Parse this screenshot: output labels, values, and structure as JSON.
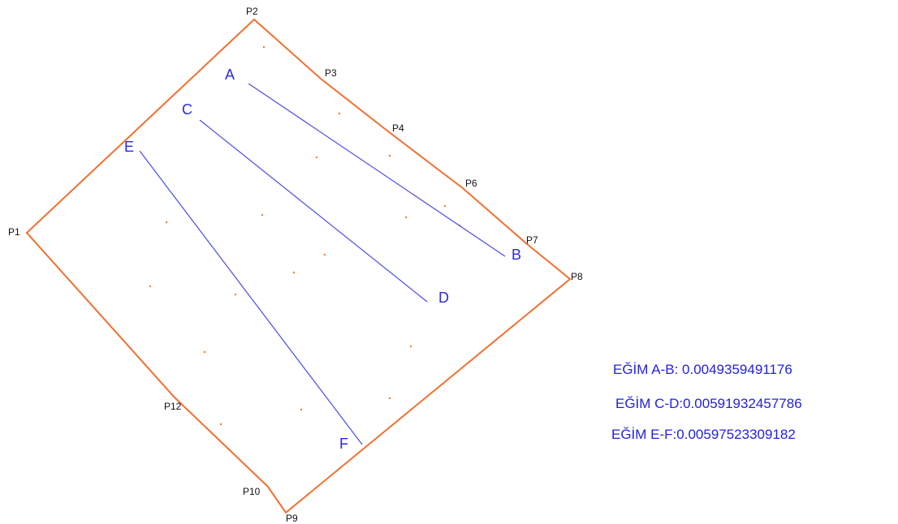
{
  "points": [
    "P1",
    "P2",
    "P3",
    "P4",
    "P6",
    "P7",
    "P8",
    "P9",
    "P10",
    "P12"
  ],
  "lines": [
    {
      "from": "A",
      "to": "B"
    },
    {
      "from": "C",
      "to": "D"
    },
    {
      "from": "E",
      "to": "F"
    }
  ],
  "slopes": [
    "EĞİM A-B: 0.0049359491176",
    "EĞİM C-D:0.00591932457786",
    "EĞİM E-F:0.00597523309182"
  ]
}
